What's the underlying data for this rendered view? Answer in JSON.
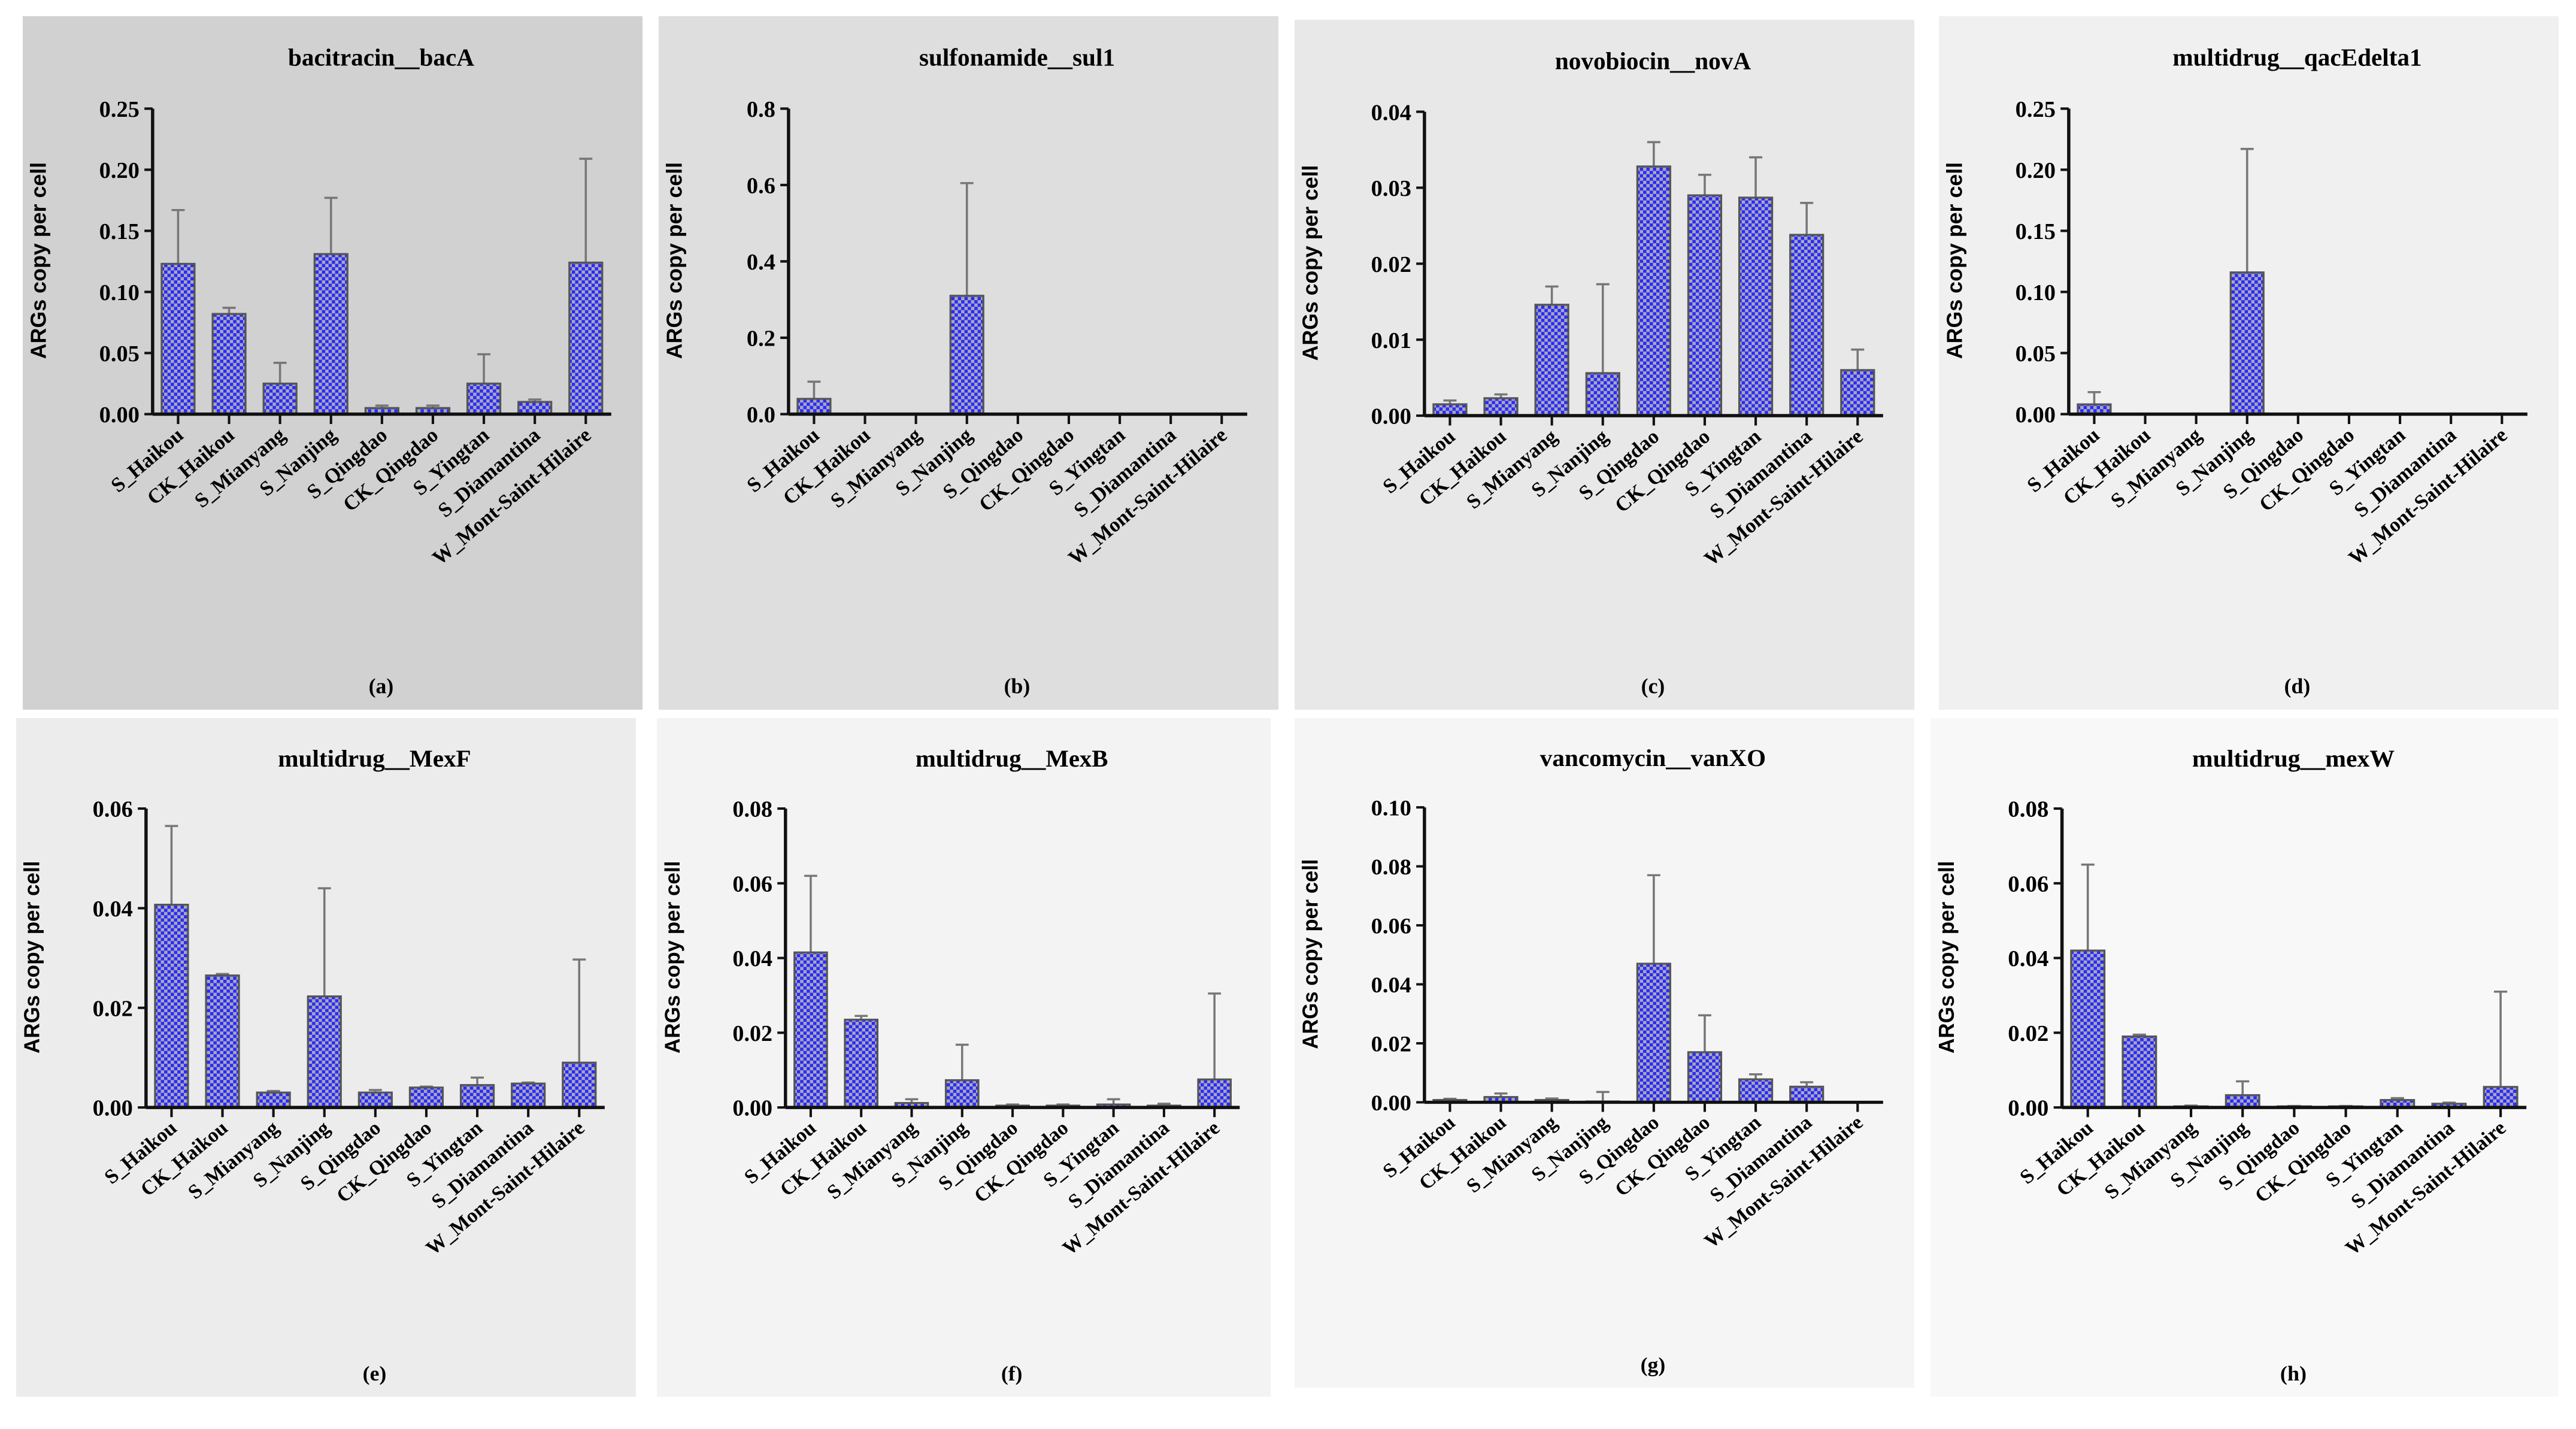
{
  "chart_data": [
    {
      "type": "bar",
      "panel": "(a)",
      "title": "bacitracin__bacA",
      "ylabel": "ARGs copy per cell",
      "xlabel": "",
      "ylim": [
        0,
        0.25
      ],
      "yticks": [
        0,
        0.05,
        0.1,
        0.15,
        0.2,
        0.25
      ],
      "ytick_labels": [
        "0.00",
        "0.05",
        "0.10",
        "0.15",
        "0.20",
        "0.25"
      ],
      "categories": [
        "S_Haikou",
        "CK_Haikou",
        "S_Mianyang",
        "S_Nanjing",
        "S_Qingdao",
        "CK_Qingdao",
        "S_Yingtan",
        "S_Diamantina",
        "W_Mont-Saint-Hilaire"
      ],
      "values": [
        0.123,
        0.082,
        0.025,
        0.131,
        0.005,
        0.005,
        0.025,
        0.01,
        0.124
      ],
      "error_upper": [
        0.167,
        0.087,
        0.042,
        0.177,
        0.007,
        0.007,
        0.049,
        0.012,
        0.209
      ],
      "bg": "#d1d1d1"
    },
    {
      "type": "bar",
      "panel": "(b)",
      "title": "sulfonamide__sul1",
      "ylabel": "ARGs copy per cell",
      "xlabel": "",
      "ylim": [
        0,
        0.8
      ],
      "yticks": [
        0,
        0.2,
        0.4,
        0.6,
        0.8
      ],
      "ytick_labels": [
        "0.0",
        "0.2",
        "0.4",
        "0.6",
        "0.8"
      ],
      "categories": [
        "S_Haikou",
        "CK_Haikou",
        "S_Mianyang",
        "S_Nanjing",
        "S_Qingdao",
        "CK_Qingdao",
        "S_Yingtan",
        "S_Diamantina",
        "W_Mont-Saint-Hilaire"
      ],
      "values": [
        0.04,
        0,
        0,
        0.31,
        0,
        0,
        0,
        0,
        0
      ],
      "error_upper": [
        0.085,
        0,
        0,
        0.605,
        0,
        0,
        0,
        0,
        0
      ],
      "bg": "#dedede"
    },
    {
      "type": "bar",
      "panel": "(c)",
      "title": "novobiocin__novA",
      "ylabel": "ARGs copy per cell",
      "xlabel": "",
      "ylim": [
        0,
        0.04
      ],
      "yticks": [
        0,
        0.01,
        0.02,
        0.03,
        0.04
      ],
      "ytick_labels": [
        "0.00",
        "0.01",
        "0.02",
        "0.03",
        "0.04"
      ],
      "categories": [
        "S_Haikou",
        "CK_Haikou",
        "S_Mianyang",
        "S_Nanjing",
        "S_Qingdao",
        "CK_Qingdao",
        "S_Yingtan",
        "S_Diamantina",
        "W_Mont-Saint-Hilaire"
      ],
      "values": [
        0.0015,
        0.0023,
        0.0146,
        0.0056,
        0.0328,
        0.029,
        0.0287,
        0.0238,
        0.006
      ],
      "error_upper": [
        0.002,
        0.0028,
        0.017,
        0.0173,
        0.036,
        0.0317,
        0.034,
        0.028,
        0.0087
      ],
      "bg": "#e8e8e8"
    },
    {
      "type": "bar",
      "panel": "(d)",
      "title": "multidrug__qacEdelta1",
      "ylabel": "ARGs copy per cell",
      "xlabel": "",
      "ylim": [
        0,
        0.25
      ],
      "yticks": [
        0,
        0.05,
        0.1,
        0.15,
        0.2,
        0.25
      ],
      "ytick_labels": [
        "0.00",
        "0.05",
        "0.10",
        "0.15",
        "0.20",
        "0.25"
      ],
      "categories": [
        "S_Haikou",
        "CK_Haikou",
        "S_Mianyang",
        "S_Nanjing",
        "S_Qingdao",
        "CK_Qingdao",
        "S_Yingtan",
        "S_Diamantina",
        "W_Mont-Saint-Hilaire"
      ],
      "values": [
        0.008,
        0,
        0,
        0.116,
        0,
        0,
        0,
        0,
        0
      ],
      "error_upper": [
        0.018,
        0,
        0,
        0.217,
        0,
        0,
        0,
        0,
        0
      ],
      "bg": "#f0f0f0"
    },
    {
      "type": "bar",
      "panel": "(e)",
      "title": "multidrug__MexF",
      "ylabel": "ARGs copy per cell",
      "xlabel": "",
      "ylim": [
        0,
        0.06
      ],
      "yticks": [
        0,
        0.02,
        0.04,
        0.06
      ],
      "ytick_labels": [
        "0.00",
        "0.02",
        "0.04",
        "0.06"
      ],
      "categories": [
        "S_Haikou",
        "CK_Haikou",
        "S_Mianyang",
        "S_Nanjing",
        "S_Qingdao",
        "CK_Qingdao",
        "S_Yingtan",
        "S_Diamantina",
        "W_Mont-Saint-Hilaire"
      ],
      "values": [
        0.0407,
        0.0265,
        0.003,
        0.0223,
        0.003,
        0.004,
        0.0045,
        0.0048,
        0.009
      ],
      "error_upper": [
        0.0565,
        0.0268,
        0.0033,
        0.044,
        0.0035,
        0.0042,
        0.006,
        0.005,
        0.0297
      ],
      "bg": "#ececec"
    },
    {
      "type": "bar",
      "panel": "(f)",
      "title": "multidrug__MexB",
      "ylabel": "ARGs copy per cell",
      "xlabel": "",
      "ylim": [
        0,
        0.08
      ],
      "yticks": [
        0,
        0.02,
        0.04,
        0.06,
        0.08
      ],
      "ytick_labels": [
        "0.00",
        "0.02",
        "0.04",
        "0.06",
        "0.08"
      ],
      "categories": [
        "S_Haikou",
        "CK_Haikou",
        "S_Mianyang",
        "S_Nanjing",
        "S_Qingdao",
        "CK_Qingdao",
        "S_Yingtan",
        "S_Diamantina",
        "W_Mont-Saint-Hilaire"
      ],
      "values": [
        0.0415,
        0.0235,
        0.0012,
        0.0073,
        0.0005,
        0.0005,
        0.0008,
        0.0005,
        0.0075
      ],
      "error_upper": [
        0.062,
        0.0245,
        0.0022,
        0.0168,
        0.0008,
        0.0008,
        0.0022,
        0.001,
        0.0305
      ],
      "bg": "#f3f3f3"
    },
    {
      "type": "bar",
      "panel": "(g)",
      "title": "vancomycin__vanXO",
      "ylabel": "ARGs copy per cell",
      "xlabel": "",
      "ylim": [
        0,
        0.1
      ],
      "yticks": [
        0,
        0.02,
        0.04,
        0.06,
        0.08,
        0.1
      ],
      "ytick_labels": [
        "0.00",
        "0.02",
        "0.04",
        "0.06",
        "0.08",
        "0.10"
      ],
      "categories": [
        "S_Haikou",
        "CK_Haikou",
        "S_Mianyang",
        "S_Nanjing",
        "S_Qingdao",
        "CK_Qingdao",
        "S_Yingtan",
        "S_Diamantina",
        "W_Mont-Saint-Hilaire"
      ],
      "values": [
        0.0008,
        0.0018,
        0.0008,
        0.0003,
        0.047,
        0.017,
        0.0078,
        0.0053,
        0
      ],
      "error_upper": [
        0.0012,
        0.003,
        0.0013,
        0.0035,
        0.077,
        0.0295,
        0.0095,
        0.0068,
        0
      ],
      "bg": "#f5f5f5"
    },
    {
      "type": "bar",
      "panel": "(h)",
      "title": "multidrug__mexW",
      "ylabel": "ARGs copy per cell",
      "xlabel": "",
      "ylim": [
        0,
        0.08
      ],
      "yticks": [
        0,
        0.02,
        0.04,
        0.06,
        0.08
      ],
      "ytick_labels": [
        "0.00",
        "0.02",
        "0.04",
        "0.06",
        "0.08"
      ],
      "categories": [
        "S_Haikou",
        "CK_Haikou",
        "S_Mianyang",
        "S_Nanjing",
        "S_Qingdao",
        "CK_Qingdao",
        "S_Yingtan",
        "S_Diamantina",
        "W_Mont-Saint-Hilaire"
      ],
      "values": [
        0.042,
        0.019,
        0.0003,
        0.0033,
        0.0003,
        0.0003,
        0.002,
        0.001,
        0.0055
      ],
      "error_upper": [
        0.065,
        0.0195,
        0.0005,
        0.007,
        0.0004,
        0.0004,
        0.0025,
        0.0013,
        0.031
      ],
      "bg": "#f8f8f8"
    }
  ],
  "colors": {
    "bar_blue": "#2a2aff",
    "bar_gray": "#a8a8b4",
    "axis": "#111111",
    "error": "#777777"
  }
}
